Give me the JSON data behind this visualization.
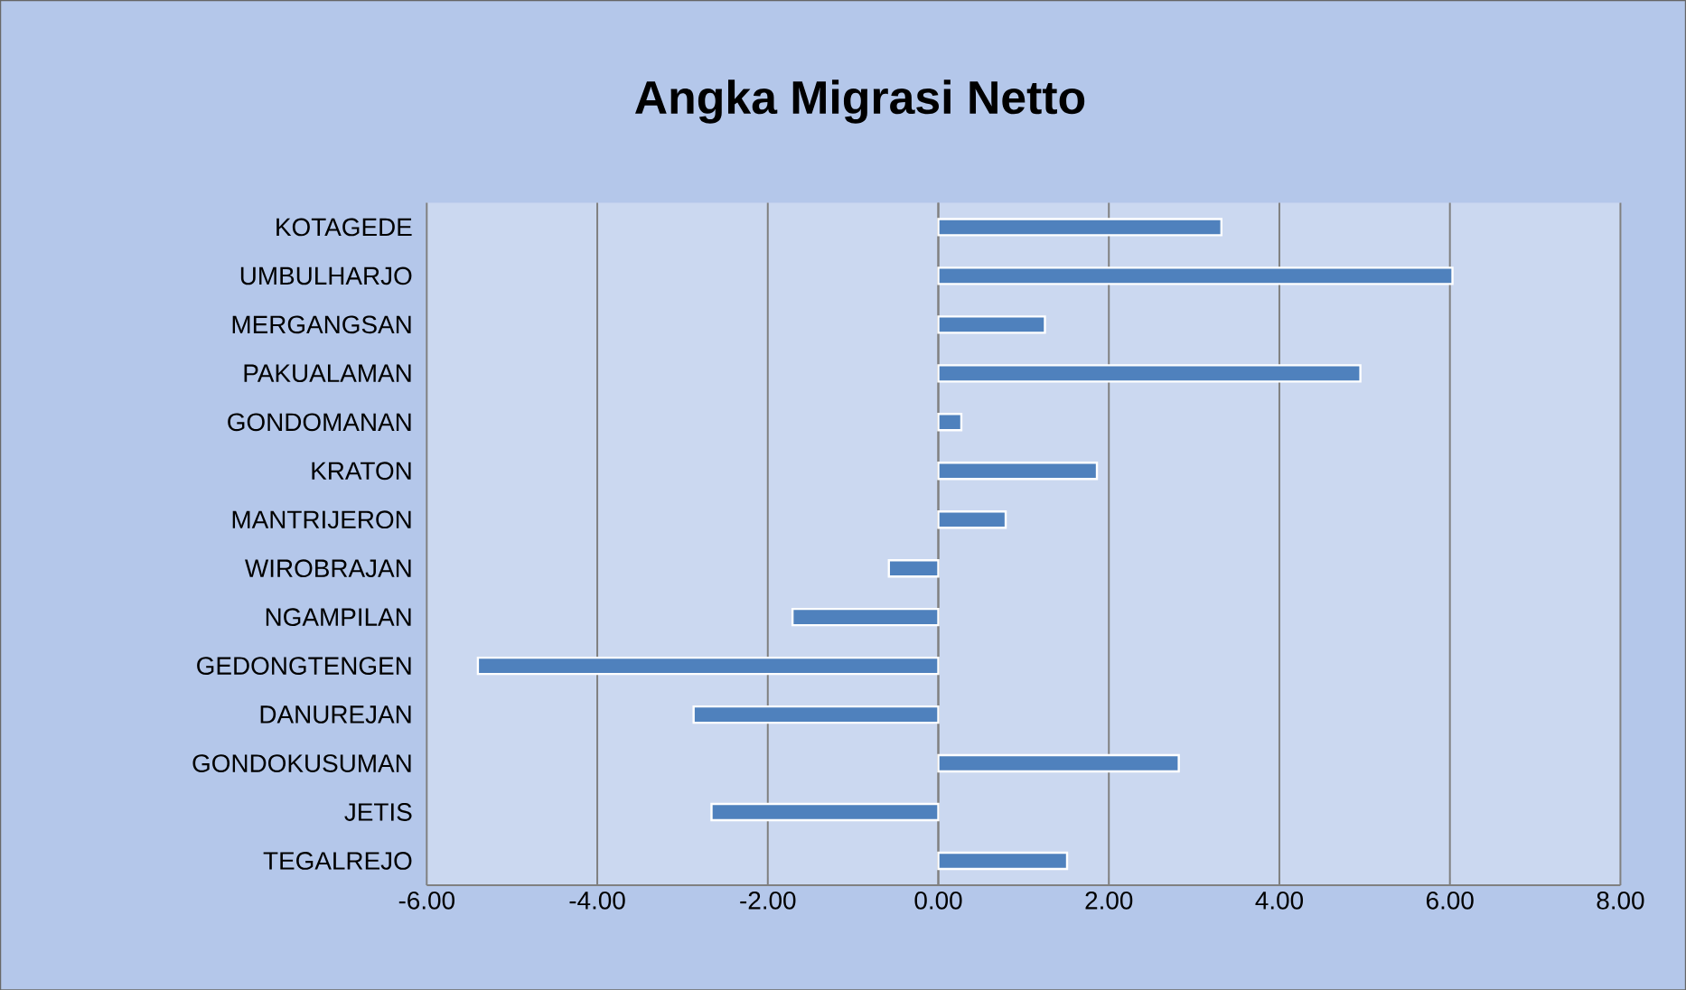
{
  "chart_data": {
    "type": "bar",
    "orientation": "horizontal",
    "title": "Angka Migrasi Netto",
    "categories": [
      "KOTAGEDE",
      "UMBULHARJO",
      "MERGANGSAN",
      "PAKUALAMAN",
      "GONDOMANAN",
      "KRATON",
      "MANTRIJERON",
      "WIROBRAJAN",
      "NGAMPILAN",
      "GEDONGTENGEN",
      "DANUREJAN",
      "GONDOKUSUMAN",
      "JETIS",
      "TEGALREJO"
    ],
    "values": [
      3.32,
      6.03,
      1.25,
      4.95,
      0.27,
      1.86,
      0.79,
      -0.58,
      -1.71,
      -5.4,
      -2.87,
      2.82,
      -2.66,
      1.51
    ],
    "color": "#4f81bd",
    "xlim": [
      -6,
      8
    ],
    "xticks": [
      {
        "value": -6,
        "label": "-6.00"
      },
      {
        "value": -4,
        "label": "-4.00"
      },
      {
        "value": -2,
        "label": "-2.00"
      },
      {
        "value": 0,
        "label": "0.00"
      },
      {
        "value": 2,
        "label": "2.00"
      },
      {
        "value": 4,
        "label": "4.00"
      },
      {
        "value": 6,
        "label": "6.00"
      },
      {
        "value": 8,
        "label": "8.00"
      }
    ],
    "grid": "x"
  }
}
